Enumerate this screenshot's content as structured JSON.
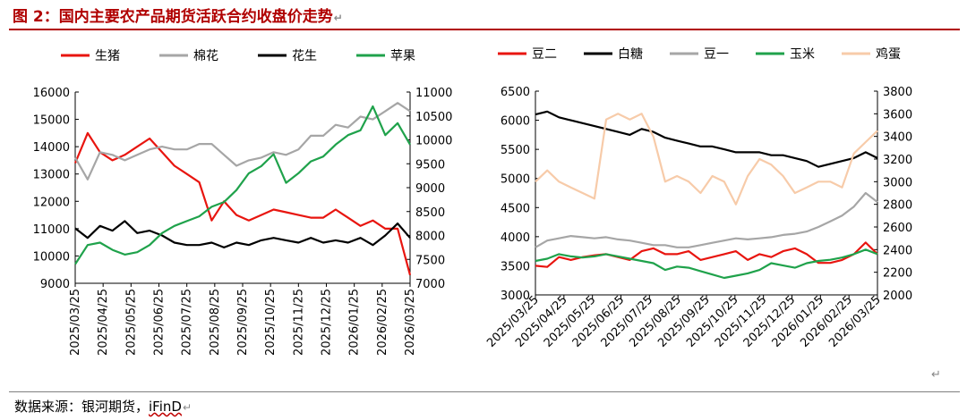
{
  "title": "图 2：国内主要农产品期货活跃合约收盘价走势",
  "source": {
    "prefix": "数据来源：银河期货，",
    "brand": "iFinD"
  },
  "chart_data": [
    {
      "type": "line",
      "x_labels": [
        "2025/03/25",
        "2025/04/25",
        "2025/05/25",
        "2025/06/25",
        "2025/07/25",
        "2025/08/25",
        "2025/09/25",
        "2025/10/25",
        "2025/11/25",
        "2025/12/25",
        "2026/01/25",
        "2026/02/25",
        "2026/03/25"
      ],
      "left_axis": {
        "min": 9000,
        "max": 16000,
        "ticks": [
          9000,
          10000,
          11000,
          12000,
          13000,
          14000,
          15000,
          16000
        ]
      },
      "right_axis": {
        "min": 7000,
        "max": 11000,
        "ticks": [
          7000,
          7500,
          8000,
          8500,
          9000,
          9500,
          10000,
          10500,
          11000
        ]
      },
      "series": [
        {
          "name": "生猪",
          "color": "#e8150f",
          "axis": "left",
          "values": [
            13400,
            14500,
            13800,
            13500,
            13700,
            14000,
            14300,
            13800,
            13300,
            13000,
            12700,
            11300,
            12000,
            11500,
            11300,
            11500,
            11700,
            11600,
            11500,
            11400,
            11400,
            11700,
            11400,
            11100,
            11300,
            11000,
            11000,
            9300
          ]
        },
        {
          "name": "棉花",
          "color": "#a6a6a6",
          "axis": "left",
          "values": [
            13600,
            12800,
            13800,
            13700,
            13500,
            13700,
            13900,
            14000,
            13900,
            13900,
            14100,
            14100,
            13700,
            13300,
            13500,
            13600,
            13800,
            13700,
            13900,
            14400,
            14400,
            14800,
            14700,
            15100,
            15000,
            15300,
            15600,
            15300
          ]
        },
        {
          "name": "花生",
          "color": "#000000",
          "axis": "right",
          "values": [
            8150,
            7950,
            8200,
            8100,
            8300,
            8050,
            8100,
            8000,
            7850,
            7800,
            7800,
            7850,
            7750,
            7850,
            7800,
            7900,
            7950,
            7900,
            7850,
            7950,
            7850,
            7900,
            7850,
            7950,
            7800,
            8000,
            8250,
            7950
          ]
        },
        {
          "name": "苹果",
          "color": "#1fa24b",
          "axis": "right",
          "values": [
            7400,
            7800,
            7850,
            7700,
            7600,
            7650,
            7800,
            8050,
            8200,
            8300,
            8400,
            8600,
            8700,
            8950,
            9300,
            9450,
            9700,
            9100,
            9300,
            9550,
            9650,
            9900,
            10100,
            10200,
            10700,
            10100,
            10350,
            9900
          ]
        }
      ]
    },
    {
      "type": "line",
      "x_labels": [
        "2025/03/25",
        "2025/04/25",
        "2025/05/25",
        "2025/06/25",
        "2025/07/25",
        "2025/08/25",
        "2025/09/25",
        "2025/10/25",
        "2025/11/25",
        "2025/12/25",
        "2026/01/25",
        "2026/02/25",
        "2026/03/25"
      ],
      "left_axis": {
        "min": 3000,
        "max": 6500,
        "ticks": [
          3000,
          3500,
          4000,
          4500,
          5000,
          5500,
          6000,
          6500
        ]
      },
      "right_axis": {
        "min": 2000,
        "max": 3800,
        "ticks": [
          2000,
          2200,
          2400,
          2600,
          2800,
          3000,
          3200,
          3400,
          3600,
          3800
        ]
      },
      "series": [
        {
          "name": "豆二",
          "color": "#e8150f",
          "axis": "left",
          "values": [
            3500,
            3480,
            3650,
            3600,
            3650,
            3680,
            3700,
            3650,
            3600,
            3750,
            3800,
            3700,
            3700,
            3750,
            3600,
            3650,
            3700,
            3750,
            3600,
            3700,
            3650,
            3750,
            3800,
            3700,
            3550,
            3550,
            3600,
            3700,
            3900,
            3700
          ]
        },
        {
          "name": "白糖",
          "color": "#000000",
          "axis": "left",
          "values": [
            6100,
            6150,
            6050,
            6000,
            5950,
            5900,
            5850,
            5800,
            5750,
            5850,
            5800,
            5700,
            5650,
            5600,
            5550,
            5550,
            5500,
            5450,
            5450,
            5450,
            5400,
            5400,
            5350,
            5300,
            5200,
            5250,
            5300,
            5350,
            5450,
            5350
          ]
        },
        {
          "name": "豆一",
          "color": "#a6a6a6",
          "axis": "right",
          "values": [
            2420,
            2480,
            2500,
            2520,
            2510,
            2500,
            2510,
            2490,
            2480,
            2460,
            2440,
            2440,
            2420,
            2420,
            2440,
            2460,
            2480,
            2500,
            2490,
            2500,
            2510,
            2530,
            2540,
            2560,
            2600,
            2650,
            2700,
            2780,
            2900,
            2820
          ]
        },
        {
          "name": "玉米",
          "color": "#1fa24b",
          "axis": "right",
          "values": [
            2300,
            2320,
            2360,
            2340,
            2330,
            2340,
            2360,
            2340,
            2320,
            2300,
            2280,
            2220,
            2250,
            2240,
            2210,
            2180,
            2150,
            2170,
            2190,
            2220,
            2280,
            2260,
            2240,
            2280,
            2300,
            2310,
            2330,
            2360,
            2400,
            2360
          ]
        },
        {
          "name": "鸡蛋",
          "color": "#f7cba9",
          "axis": "right",
          "values": [
            3000,
            3100,
            3000,
            2950,
            2900,
            2850,
            3550,
            3600,
            3550,
            3600,
            3400,
            3000,
            3050,
            3000,
            2900,
            3050,
            3000,
            2800,
            3050,
            3200,
            3150,
            3050,
            2900,
            2950,
            3000,
            3000,
            2950,
            3250,
            3350,
            3450
          ]
        }
      ]
    }
  ]
}
